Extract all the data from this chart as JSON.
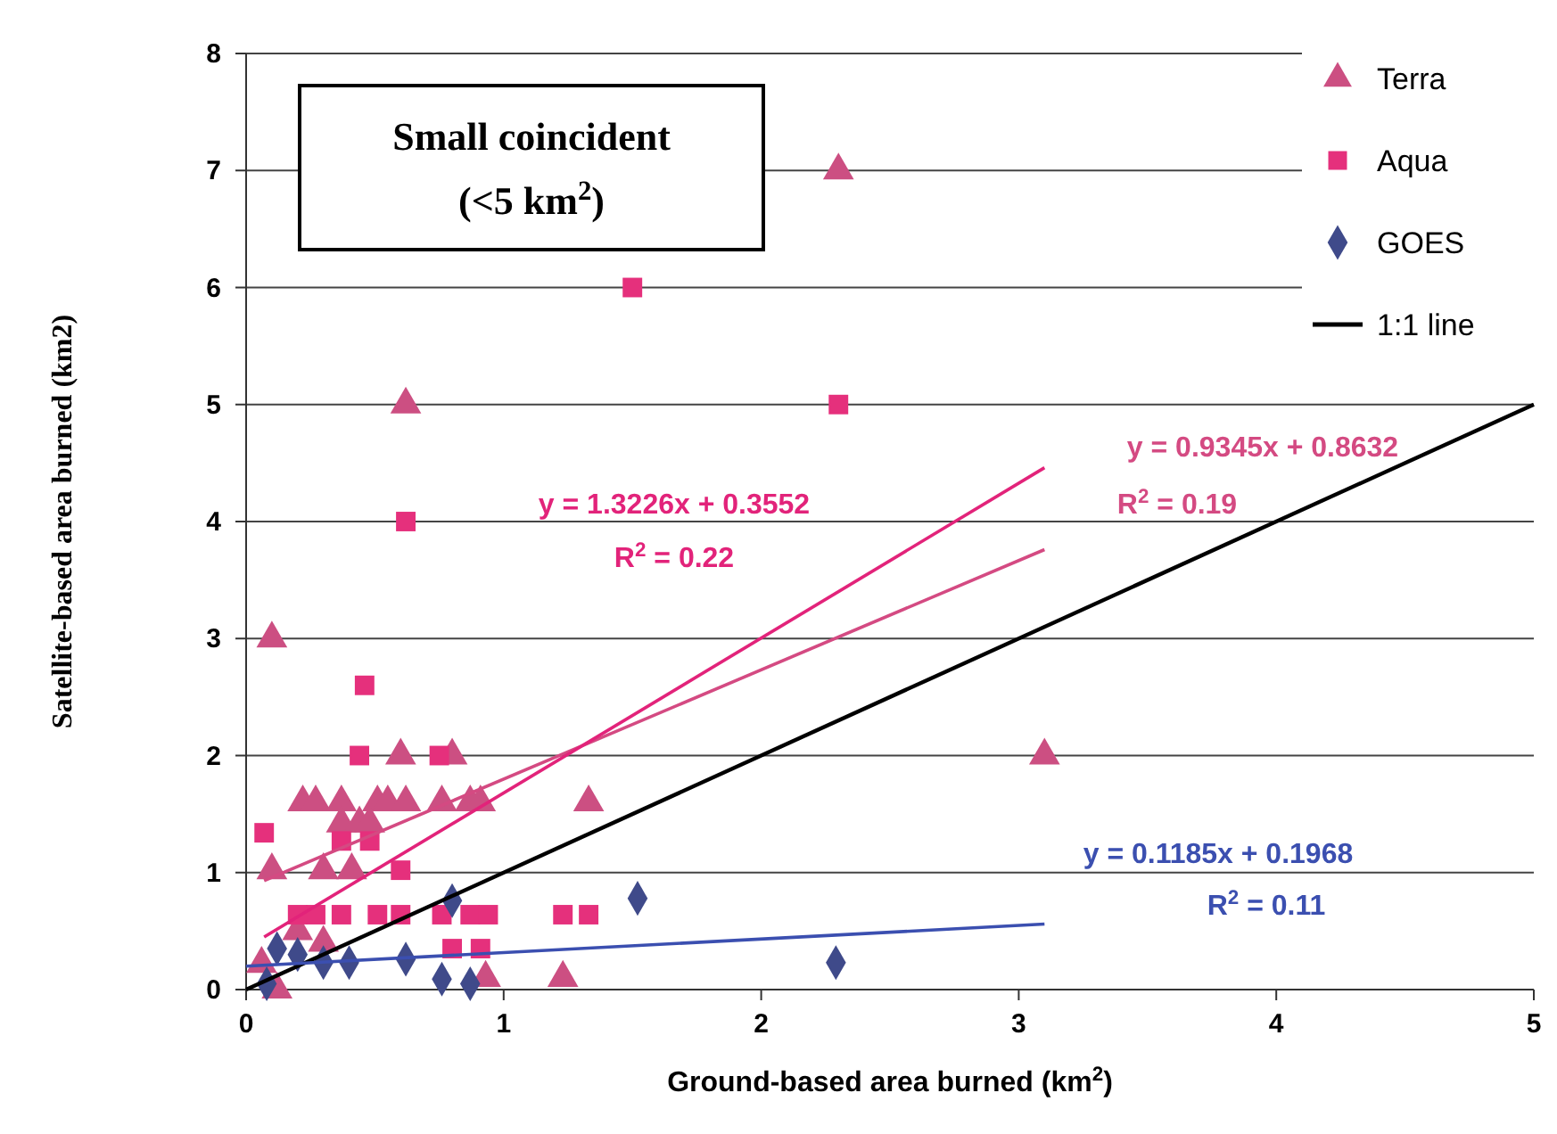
{
  "chart_data": {
    "type": "scatter",
    "title": "Small coincident",
    "subtitle": "(<5 km$^{2}$)",
    "xlabel": "Ground-based area burned (km$^{2}$)",
    "ylabel": "Satellite-based area burned (km2)",
    "xlim": [
      0,
      5
    ],
    "xticks": [
      0,
      1,
      2,
      3,
      4,
      5
    ],
    "ylim": [
      0,
      8
    ],
    "yticks": [
      0,
      1,
      2,
      3,
      4,
      5,
      6,
      7,
      8
    ],
    "grid": "y",
    "legend": "top right",
    "series": [
      {
        "name": "Terra",
        "marker": "triangle",
        "color": "#cc4f82",
        "x": [
          0.1,
          0.62,
          2.3,
          3.1,
          1.33,
          0.22,
          0.27,
          0.37,
          0.51,
          0.55,
          0.62,
          0.76,
          0.87,
          0.91,
          0.6,
          0.8,
          0.37,
          0.44,
          0.48,
          0.1,
          0.3,
          0.41,
          0.2,
          0.3,
          0.93,
          1.23,
          0.12,
          0.06
        ],
        "values": [
          3.0,
          5.0,
          7.0,
          2.0,
          1.6,
          1.6,
          1.6,
          1.6,
          1.6,
          1.6,
          1.6,
          1.6,
          1.6,
          1.6,
          2.0,
          2.0,
          1.42,
          1.42,
          1.42,
          1.02,
          1.02,
          1.02,
          0.5,
          0.4,
          0.1,
          0.1,
          0.0,
          0.22
        ]
      },
      {
        "name": "Aqua",
        "marker": "square",
        "color": "#e5307c",
        "x": [
          1.5,
          2.3,
          0.62,
          0.46,
          0.44,
          0.75,
          0.07,
          0.37,
          0.48,
          0.6,
          0.2,
          0.27,
          0.37,
          0.51,
          0.6,
          0.76,
          0.87,
          0.94,
          1.23,
          1.33,
          0.8,
          0.91
        ],
        "values": [
          6.0,
          5.0,
          4.0,
          2.6,
          2.0,
          2.0,
          1.34,
          1.27,
          1.27,
          1.02,
          0.64,
          0.64,
          0.64,
          0.64,
          0.64,
          0.64,
          0.64,
          0.64,
          0.64,
          0.64,
          0.35,
          0.35
        ]
      },
      {
        "name": "GOES",
        "marker": "diamond",
        "color": "#3f4a8a",
        "x": [
          0.08,
          0.12,
          0.2,
          0.3,
          0.4,
          0.62,
          0.8,
          0.76,
          0.87,
          1.52,
          2.29
        ],
        "values": [
          0.05,
          0.35,
          0.3,
          0.23,
          0.23,
          0.26,
          0.76,
          0.09,
          0.05,
          0.78,
          0.23
        ]
      },
      {
        "name": "1:1 line",
        "type": "line",
        "color": "#000000",
        "x": [
          0,
          5
        ],
        "values": [
          0,
          5
        ]
      },
      {
        "type": "line",
        "color": "#d44a82",
        "x": [
          0.07,
          3.1
        ],
        "values": [
          0.93,
          3.76
        ]
      },
      {
        "type": "line",
        "color": "#e2237a",
        "x": [
          0.07,
          3.1
        ],
        "values": [
          0.45,
          4.46
        ]
      },
      {
        "type": "line",
        "color": "#3b4fb0",
        "x": [
          0,
          3.1
        ],
        "values": [
          0.2,
          0.56
        ]
      }
    ],
    "annotations": [
      "y = 0.9345x + 0.8632",
      "R$^{2}$ = 0.19",
      "y = 1.3226x + 0.3552",
      "R$^{2}$ = 0.22",
      "y = 0.1185x + 0.1968",
      "R$^{2}$ = 0.11"
    ]
  }
}
